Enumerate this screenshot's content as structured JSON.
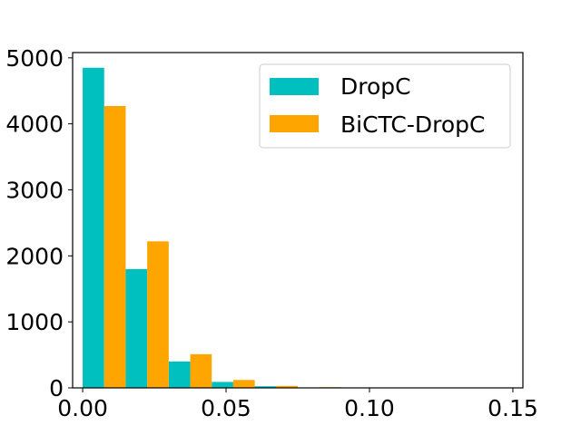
{
  "chart_data": {
    "type": "bar",
    "title": "",
    "xlabel": "",
    "ylabel": "",
    "xlim": [
      -0.0035,
      0.1535
    ],
    "ylim": [
      0,
      5080
    ],
    "xticks": [
      0.0,
      0.05,
      0.1,
      0.15
    ],
    "xtick_labels": [
      "0.00",
      "0.05",
      "0.10",
      "0.15"
    ],
    "yticks": [
      0,
      1000,
      2000,
      3000,
      4000,
      5000
    ],
    "ytick_labels": [
      "0",
      "1000",
      "2000",
      "3000",
      "4000",
      "5000"
    ],
    "bin_edges": [
      0.0,
      0.015,
      0.03,
      0.045,
      0.06,
      0.075,
      0.09,
      0.105,
      0.12,
      0.135,
      0.15
    ],
    "grid": false,
    "legend_position": "top-right",
    "series": [
      {
        "name": "DropC",
        "color": "#00bfbf",
        "values": [
          4850,
          1800,
          400,
          90,
          25,
          5,
          2,
          1,
          0,
          0
        ]
      },
      {
        "name": "BiCTC-DropC",
        "color": "#ffa500",
        "values": [
          4270,
          2220,
          510,
          120,
          30,
          10,
          3,
          1,
          0,
          0
        ]
      }
    ]
  }
}
